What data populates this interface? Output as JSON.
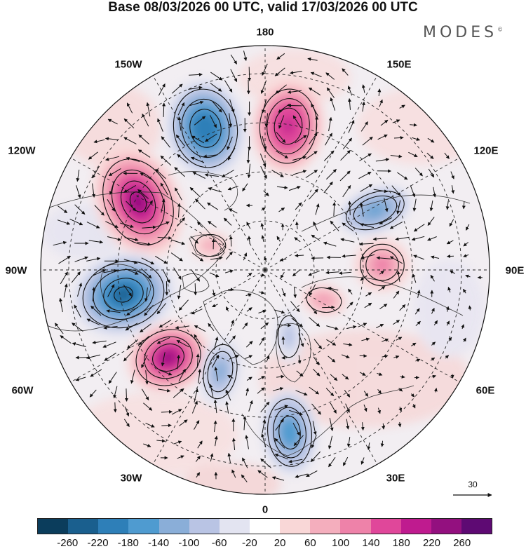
{
  "title": "Base 08/03/2026 00 UTC, valid 17/03/2026 00 UTC",
  "brand": "MODES",
  "brand_mark": "©",
  "longitude_labels": {
    "lon_180": "180",
    "lon_150w": "150W",
    "lon_150e": "150E",
    "lon_120w": "120W",
    "lon_120e": "120E",
    "lon_90w": "90W",
    "lon_90e": "90E",
    "lon_60w": "60W",
    "lon_60e": "60E",
    "lon_30w": "30W",
    "lon_30e": "30E",
    "lon_0": "0"
  },
  "reference_vector": {
    "label": "30"
  },
  "colorbar": {
    "colors": [
      "#0b3d5c",
      "#1a5f8e",
      "#2e7fb8",
      "#4f9bd0",
      "#8aaed8",
      "#b9c4e4",
      "#e3e4f1",
      "#ffffff",
      "#f9d7d7",
      "#f4aebd",
      "#ee82a9",
      "#e0479a",
      "#bf1b8f",
      "#93107f",
      "#5e0a73"
    ],
    "ticks": [
      "-260",
      "-220",
      "-180",
      "-140",
      "-100",
      "-60",
      "-20",
      "20",
      "60",
      "100",
      "140",
      "180",
      "220",
      "260"
    ]
  },
  "anomalies": [
    {
      "name": "anomaly-neg-bering",
      "value": -220
    },
    {
      "name": "anomaly-pos-kamchatka",
      "value": 200
    },
    {
      "name": "anomaly-pos-alaska",
      "value": 240
    },
    {
      "name": "anomaly-neg-hudson",
      "value": -250
    },
    {
      "name": "anomaly-pos-atlantic",
      "value": 220
    },
    {
      "name": "anomaly-neg-greenland-sea",
      "value": -130
    },
    {
      "name": "anomaly-neg-europe",
      "value": -170
    },
    {
      "name": "anomaly-neg-siberia",
      "value": -160
    },
    {
      "name": "anomaly-pos-central-siberia",
      "value": 120
    },
    {
      "name": "anomaly-pos-kara",
      "value": 100
    },
    {
      "name": "anomaly-neg-barents",
      "value": -100
    },
    {
      "name": "anomaly-pos-canada-arctic",
      "value": 90
    }
  ]
}
